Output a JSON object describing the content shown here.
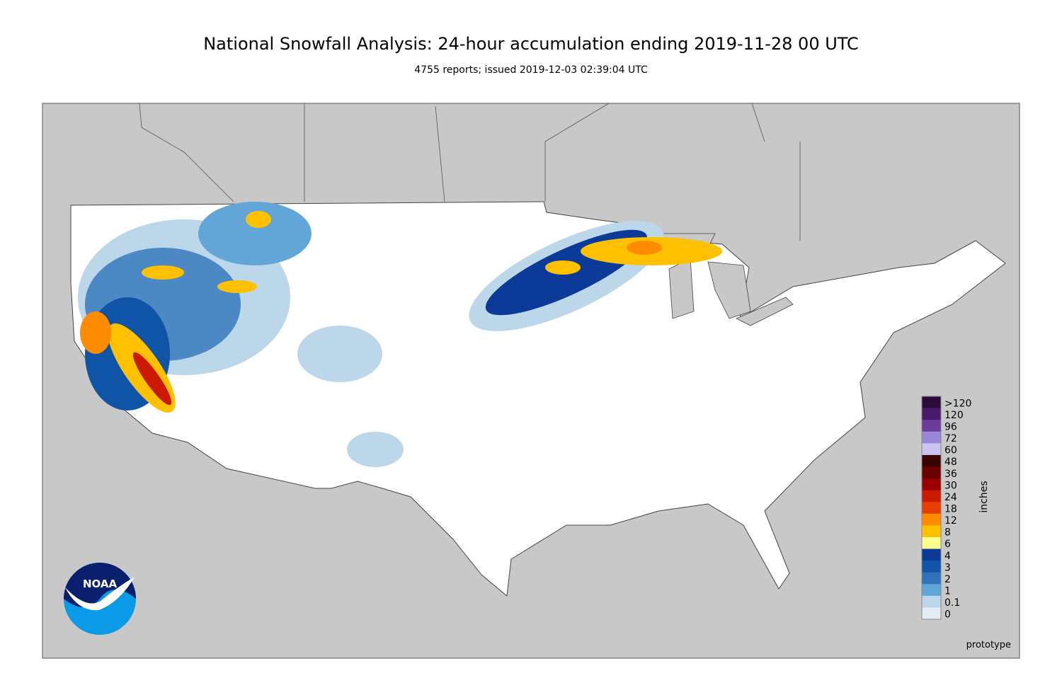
{
  "header": {
    "title": "National Snowfall Analysis: 24-hour accumulation ending 2019-11-28 00 UTC",
    "subtitle": "4755 reports; issued 2019-12-03 02:39:04 UTC"
  },
  "legend": {
    "unit": "inches",
    "levels": [
      {
        "label": ">120",
        "color": "#2b0b3c"
      },
      {
        "label": "120",
        "color": "#4b1b6b"
      },
      {
        "label": "96",
        "color": "#6b3b9b"
      },
      {
        "label": "72",
        "color": "#9a86d6"
      },
      {
        "label": "60",
        "color": "#cac4f2"
      },
      {
        "label": "48",
        "color": "#3a0500"
      },
      {
        "label": "36",
        "color": "#6a0000"
      },
      {
        "label": "30",
        "color": "#9a0000"
      },
      {
        "label": "24",
        "color": "#cc1a00"
      },
      {
        "label": "18",
        "color": "#e84000"
      },
      {
        "label": "12",
        "color": "#ff8c00"
      },
      {
        "label": "8",
        "color": "#ffc000"
      },
      {
        "label": "6",
        "color": "#ffff90"
      },
      {
        "label": "4",
        "color": "#0c3a98"
      },
      {
        "label": "3",
        "color": "#1054a8"
      },
      {
        "label": "2",
        "color": "#2f74ba"
      },
      {
        "label": "1",
        "color": "#62a6d8"
      },
      {
        "label": "0.1",
        "color": "#bcd6ea"
      },
      {
        "label": "0",
        "color": "#e4edf6"
      }
    ]
  },
  "logo": {
    "text": "NOAA"
  },
  "footer": {
    "note": "prototype"
  }
}
